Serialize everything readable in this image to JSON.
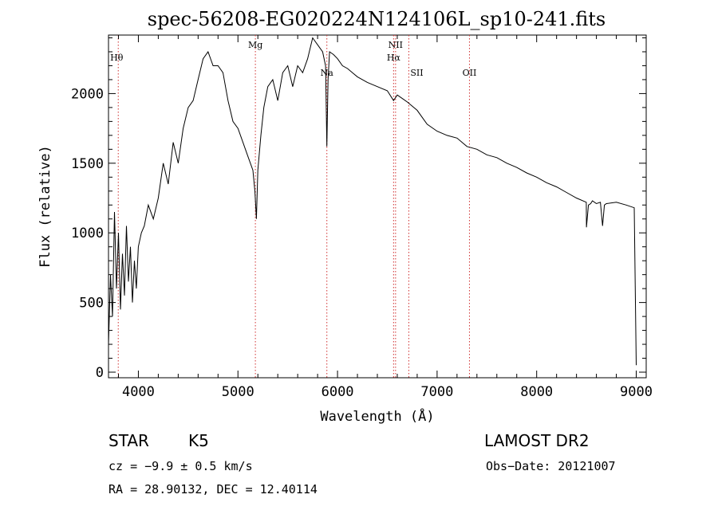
{
  "chart_data": {
    "type": "line",
    "title": "spec-56208-EG020224N124106L_sp10-241.fits",
    "xlabel": "Wavelength (Å)",
    "ylabel": "Flux (relative)",
    "xlim": [
      3700,
      9100
    ],
    "ylim": [
      -40,
      2420
    ],
    "x_ticks": [
      4000,
      5000,
      6000,
      7000,
      8000,
      9000
    ],
    "y_ticks": [
      0,
      500,
      1000,
      1500,
      2000
    ],
    "grid": false,
    "series": [
      {
        "x": [
          3700,
          3720,
          3740,
          3760,
          3780,
          3800,
          3820,
          3840,
          3860,
          3880,
          3900,
          3920,
          3940,
          3960,
          3980,
          4000,
          4030,
          4060,
          4100,
          4150,
          4200,
          4250,
          4300,
          4350,
          4400,
          4450,
          4500,
          4550,
          4600,
          4650,
          4700,
          4750,
          4800,
          4850,
          4900,
          4950,
          5000,
          5050,
          5100,
          5150,
          5170,
          5185,
          5200,
          5230,
          5260,
          5300,
          5350,
          5400,
          5450,
          5500,
          5550,
          5600,
          5650,
          5700,
          5750,
          5800,
          5850,
          5880,
          5893,
          5905,
          5920,
          5960,
          6000,
          6050,
          6100,
          6150,
          6200,
          6300,
          6400,
          6500,
          6563,
          6600,
          6700,
          6800,
          6900,
          7000,
          7100,
          7200,
          7300,
          7400,
          7500,
          7600,
          7700,
          7800,
          7900,
          8000,
          8100,
          8200,
          8300,
          8400,
          8498,
          8500,
          8520,
          8542,
          8560,
          8600,
          8640,
          8662,
          8680,
          8700,
          8800,
          8900,
          8980,
          9000
        ],
        "values": [
          200,
          700,
          400,
          1150,
          600,
          1000,
          450,
          850,
          550,
          1050,
          650,
          900,
          500,
          800,
          600,
          900,
          1000,
          1050,
          1200,
          1100,
          1250,
          1500,
          1350,
          1650,
          1500,
          1750,
          1900,
          1950,
          2100,
          2250,
          2300,
          2200,
          2200,
          2150,
          1950,
          1800,
          1750,
          1650,
          1550,
          1450,
          1300,
          1100,
          1450,
          1700,
          1900,
          2050,
          2100,
          1950,
          2150,
          2200,
          2050,
          2200,
          2150,
          2250,
          2400,
          2350,
          2300,
          2200,
          1620,
          2100,
          2300,
          2280,
          2250,
          2200,
          2180,
          2150,
          2120,
          2080,
          2050,
          2020,
          1950,
          1990,
          1940,
          1880,
          1780,
          1730,
          1700,
          1680,
          1620,
          1600,
          1560,
          1540,
          1500,
          1470,
          1430,
          1400,
          1360,
          1330,
          1290,
          1250,
          1220,
          1040,
          1200,
          1210,
          1230,
          1210,
          1220,
          1050,
          1200,
          1210,
          1220,
          1200,
          1180,
          50
        ]
      }
    ],
    "line_markers": [
      {
        "label": "Hθ",
        "x": 3798
      },
      {
        "label": "Mg",
        "x": 5175
      },
      {
        "label": "Na",
        "x": 5893
      },
      {
        "label": "NII",
        "x": 6583
      },
      {
        "label": "Hα",
        "x": 6563
      },
      {
        "label": "SII",
        "x": 6716
      },
      {
        "label": "OII",
        "x": 7325
      }
    ],
    "marker_color": "#d03030",
    "line_color": "#000000"
  },
  "info": {
    "object_class": "STAR",
    "subclass": "K5",
    "survey": "LAMOST DR2",
    "cz": "cz = −9.9 ± 0.5 km/s",
    "obs_date": "Obs−Date: 20121007",
    "coords": "RA =  28.90132, DEC =  12.40114"
  }
}
